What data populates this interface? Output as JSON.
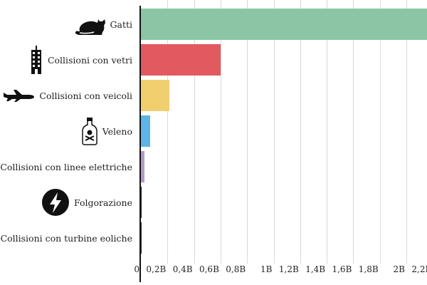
{
  "chart_data": {
    "type": "bar",
    "orientation": "horizontal",
    "title": "",
    "xlabel": "",
    "ylabel": "",
    "categories": [
      "Gatti",
      "Collisioni con vetri",
      "Collisioni con veicoli",
      "Veleno",
      "Collisioni con linee elettriche",
      "Folgorazione",
      "Collisioni con turbine eoliche"
    ],
    "values": [
      2400000000,
      600000000,
      215000000,
      72000000,
      25000000,
      5500000,
      500000
    ],
    "colors": [
      "#8cc4a6",
      "#e05a5f",
      "#f1cf6e",
      "#5db5e5",
      "#b39ac9",
      "#1f1a4d",
      "#333333"
    ],
    "icons": [
      "cat-icon",
      "building-icon",
      "airplane-icon",
      "poison-bottle-icon",
      "",
      "lightning-icon",
      ""
    ],
    "xticks": [
      "0",
      "0,2B",
      "0,4B",
      "0,6B",
      "0,8B",
      "1B",
      "1,2B",
      "1,4B",
      "1,6B",
      "1,8B",
      "2B",
      "2,2B"
    ],
    "xlim": [
      0,
      2200000000
    ],
    "grid": true,
    "legend": "none"
  }
}
